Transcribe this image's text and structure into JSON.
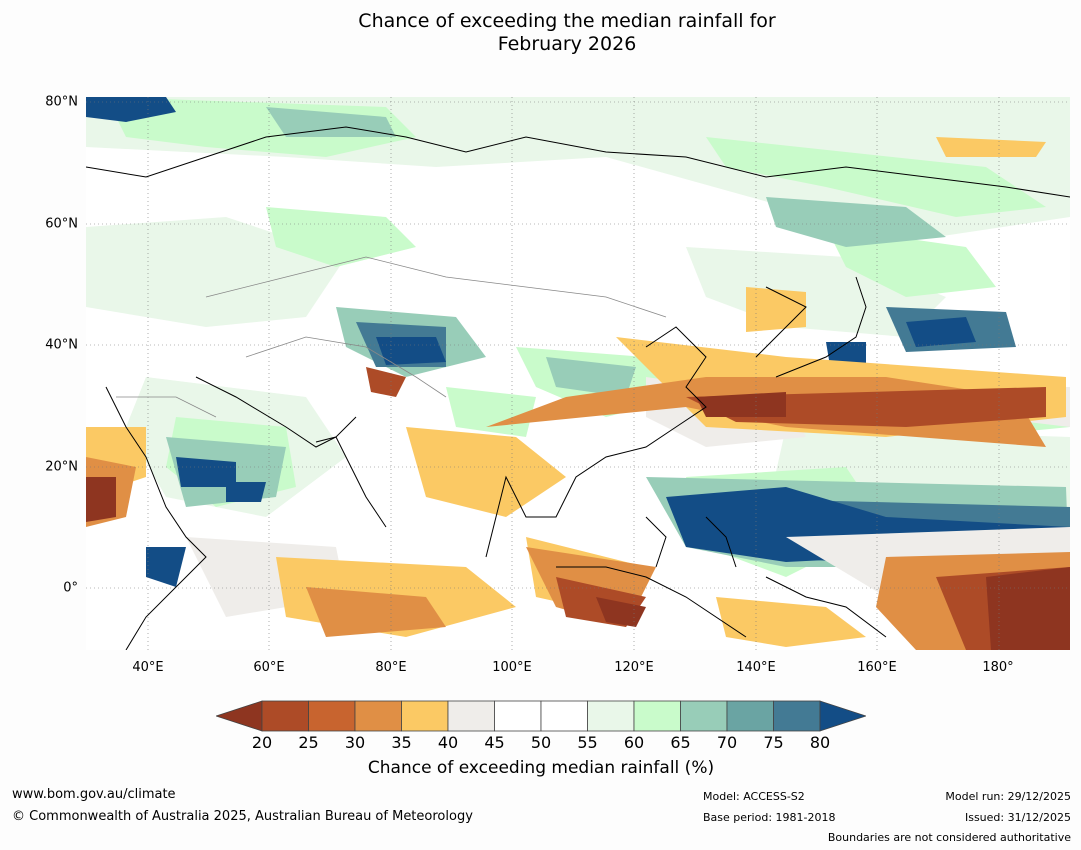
{
  "title_line1": "Chance of exceeding the median rainfall for",
  "title_line2": "February 2026",
  "map": {
    "lat_labels": [
      "80°N",
      "60°N",
      "40°N",
      "20°N",
      "0°"
    ],
    "lon_labels": [
      "40°E",
      "60°E",
      "80°E",
      "100°E",
      "120°E",
      "140°E",
      "160°E",
      "180°"
    ]
  },
  "colorbar": {
    "ticks": [
      "20",
      "25",
      "30",
      "35",
      "40",
      "45",
      "50",
      "55",
      "60",
      "65",
      "70",
      "75",
      "80"
    ],
    "colors": [
      "#8e3520",
      "#ad4b27",
      "#c8642f",
      "#e08f45",
      "#fbc964",
      "#efedea",
      "#ffffff",
      "#ffffff",
      "#e9f7e9",
      "#c9fbcb",
      "#98cdb8",
      "#6aa4a3",
      "#437a94",
      "#134d86"
    ],
    "label": "Chance of exceeding median rainfall (%)"
  },
  "footer": {
    "website": "www.bom.gov.au/climate",
    "copyright": "© Commonwealth of Australia 2025, Australian Bureau of Meteorology",
    "model": "Model: ACCESS-S2",
    "base_period": "Base period: 1981-2018",
    "model_run": "Model run: 29/12/2025",
    "issued": "Issued: 31/12/2025",
    "boundaries": "Boundaries are not considered authoritative"
  }
}
